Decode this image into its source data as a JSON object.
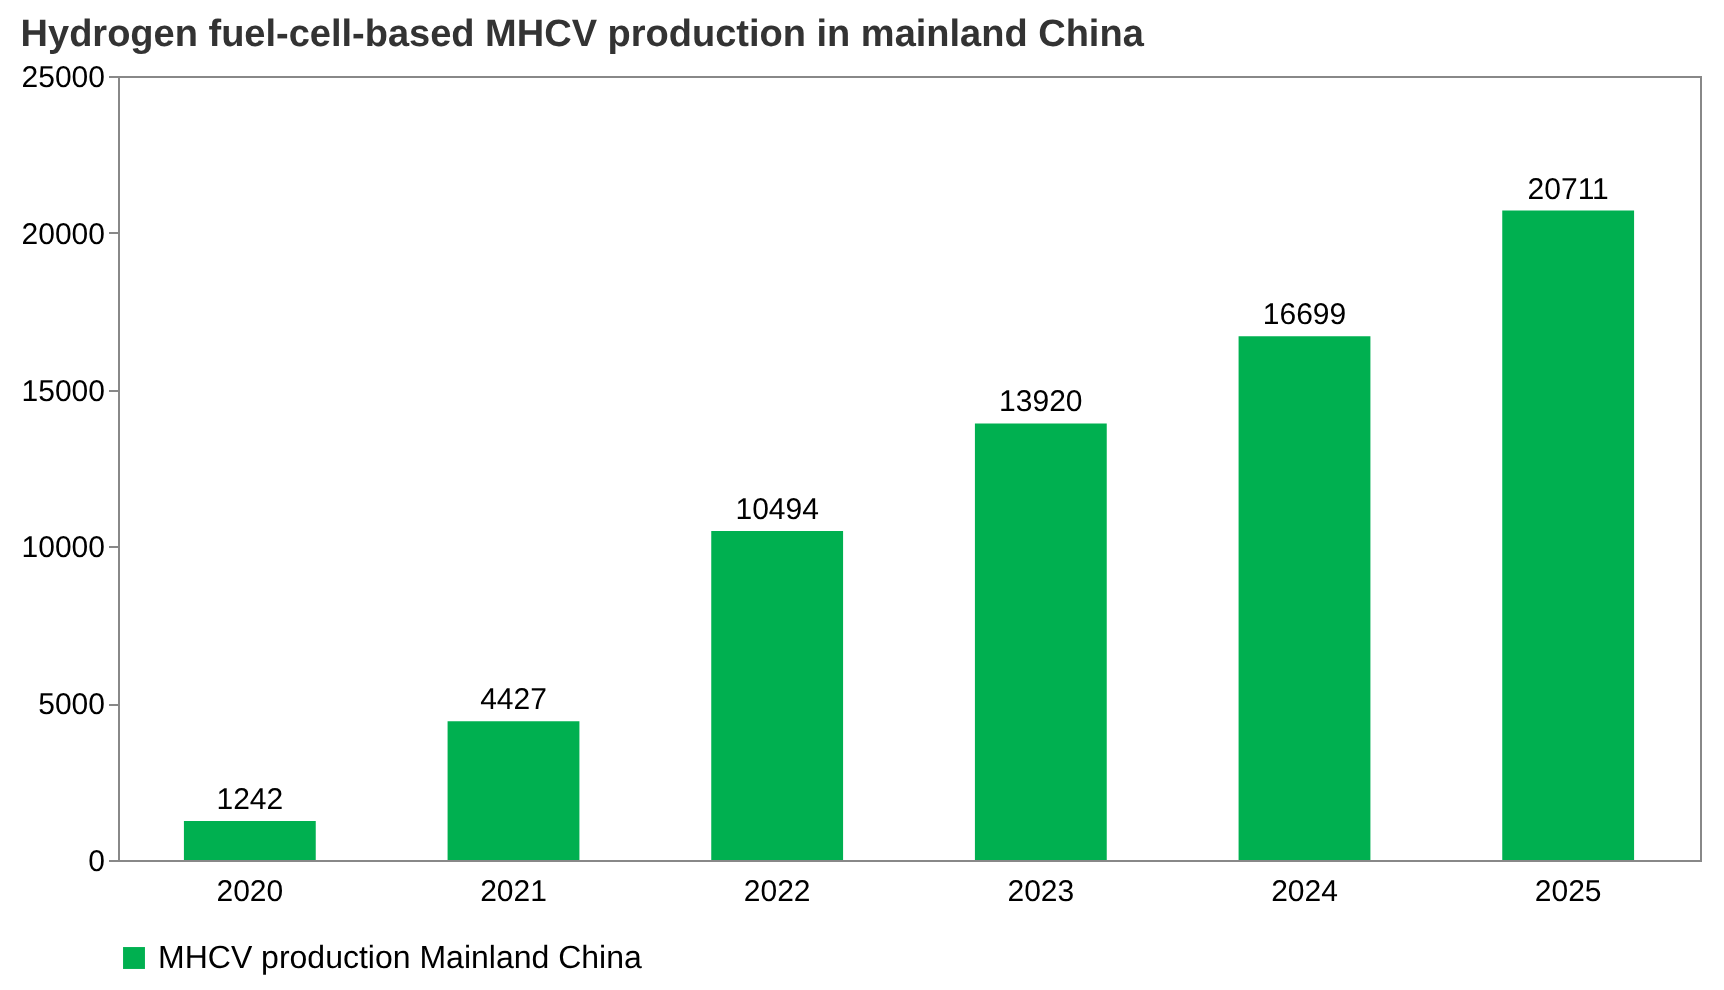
{
  "chart_data": {
    "type": "bar",
    "title": "Hydrogen fuel-cell-based MHCV production in mainland China",
    "categories": [
      "2020",
      "2021",
      "2022",
      "2023",
      "2024",
      "2025"
    ],
    "series": [
      {
        "name": "MHCV production Mainland China",
        "color": "#00b050",
        "values": [
          1242,
          4427,
          10494,
          13920,
          16699,
          20711
        ]
      }
    ],
    "ylim": [
      0,
      25000
    ],
    "yticks": [
      0,
      5000,
      10000,
      15000,
      20000,
      25000
    ],
    "grid": false,
    "legend": "bottom",
    "data_labels": true
  }
}
